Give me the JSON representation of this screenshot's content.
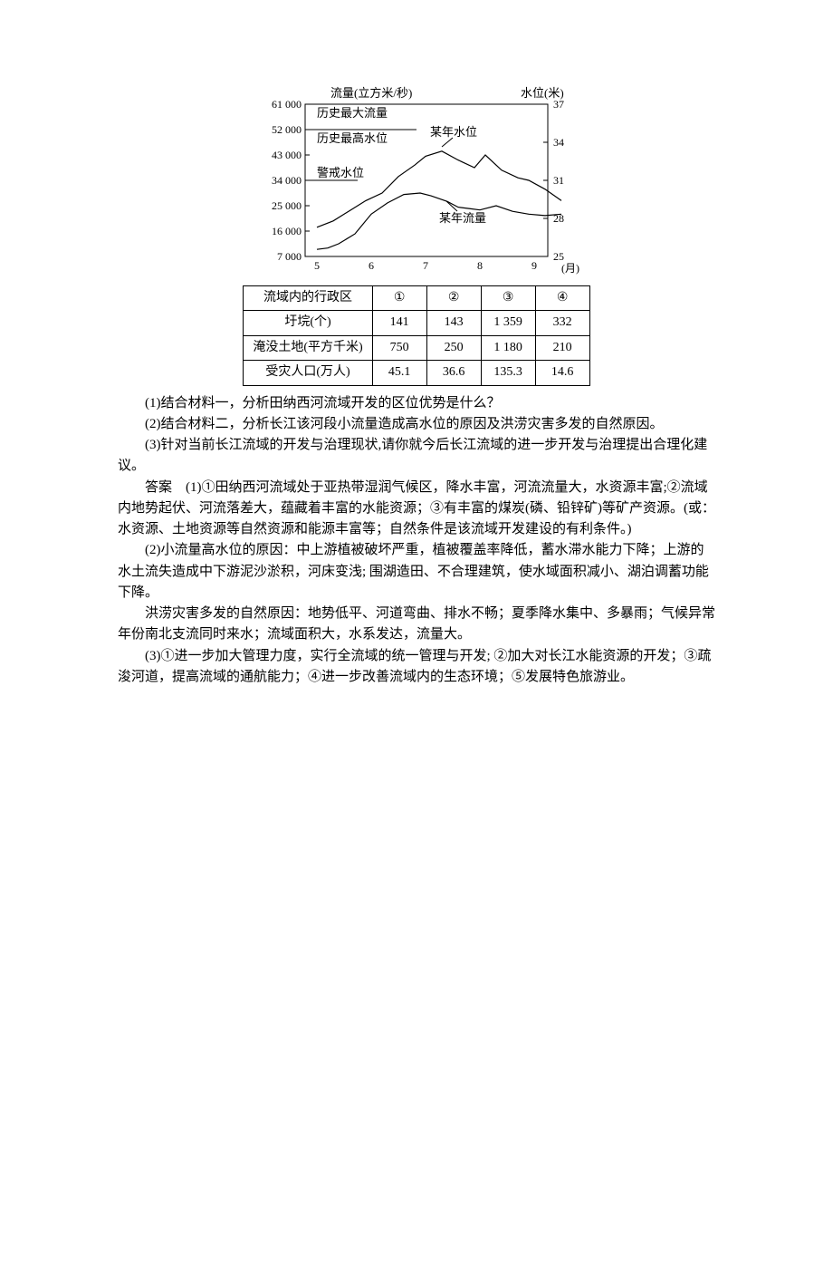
{
  "chart": {
    "type": "line",
    "left_axis_label": "流量(立方米/秒)",
    "right_axis_label": "水位(米)",
    "x_axis_label": "(月)",
    "left_yticks": [
      "61 000",
      "52 000",
      "43 000",
      "34 000",
      "25 000",
      "16 000",
      "7 000"
    ],
    "right_yticks": [
      "37",
      "34",
      "31",
      "28",
      "25"
    ],
    "xticks": [
      "5",
      "6",
      "7",
      "8",
      "9"
    ],
    "annotations": {
      "max_flow": "历史最大流量",
      "max_level": "历史最高水位",
      "warn_level": "警戒水位",
      "year_level": "某年水位",
      "year_flow": "某年流量"
    },
    "axis_color": "#000000",
    "line_color": "#000000",
    "background": "#ffffff",
    "series": {
      "max_flow_level": 61000,
      "max_level_level": 52000,
      "warn_level_level": 34000,
      "year_level_points": [
        [
          5.0,
          27.3
        ],
        [
          5.3,
          27.8
        ],
        [
          5.6,
          28.6
        ],
        [
          5.9,
          29.4
        ],
        [
          6.2,
          30.0
        ],
        [
          6.5,
          31.3
        ],
        [
          6.8,
          32.2
        ],
        [
          7.0,
          32.9
        ],
        [
          7.3,
          33.3
        ],
        [
          7.6,
          32.6
        ],
        [
          7.9,
          32.0
        ],
        [
          8.1,
          33.0
        ],
        [
          8.4,
          31.8
        ],
        [
          8.7,
          31.2
        ],
        [
          8.9,
          31.0
        ],
        [
          9.2,
          30.3
        ],
        [
          9.5,
          29.4
        ]
      ],
      "year_flow_points": [
        [
          5.0,
          9500
        ],
        [
          5.2,
          10000
        ],
        [
          5.4,
          11500
        ],
        [
          5.7,
          15000
        ],
        [
          6.0,
          22000
        ],
        [
          6.3,
          26000
        ],
        [
          6.6,
          29000
        ],
        [
          6.9,
          29500
        ],
        [
          7.1,
          28500
        ],
        [
          7.4,
          26500
        ],
        [
          7.6,
          24500
        ],
        [
          7.8,
          24000
        ],
        [
          8.0,
          23500
        ],
        [
          8.3,
          25000
        ],
        [
          8.6,
          23000
        ],
        [
          8.9,
          22000
        ],
        [
          9.2,
          21500
        ],
        [
          9.5,
          22000
        ]
      ]
    }
  },
  "table": {
    "rows": [
      {
        "label": "流域内的行政区",
        "cells": [
          "①",
          "②",
          "③",
          "④"
        ]
      },
      {
        "label": "圩垸(个)",
        "cells": [
          "141",
          "143",
          "1 359",
          "332"
        ]
      },
      {
        "label": "淹没土地(平方千米)",
        "cells": [
          "750",
          "250",
          "1 180",
          "210"
        ]
      },
      {
        "label": "受灾人口(万人)",
        "cells": [
          "45.1",
          "36.6",
          "135.3",
          "14.6"
        ]
      }
    ]
  },
  "questions": {
    "q1": "(1)结合材料一，分析田纳西河流域开发的区位优势是什么？",
    "q2": "(2)结合材料二，分析长江该河段小流量造成高水位的原因及洪涝灾害多发的自然原因。",
    "q3": "(3)针对当前长江流域的开发与治理现状,请你就今后长江流域的进一步开发与治理提出合理化建议。"
  },
  "answers": {
    "a1": "答案　(1)①田纳西河流域处于亚热带湿润气候区，降水丰富，河流流量大，水资源丰富;②流域内地势起伏、河流落差大，蕴藏着丰富的水能资源；③有丰富的煤炭(磷、铅锌矿)等矿产资源。(或：水资源、土地资源等自然资源和能源丰富等；自然条件是该流域开发建设的有利条件。)",
    "a2_p1": "(2)小流量高水位的原因：中上游植被破坏严重，植被覆盖率降低，蓄水滞水能力下降；上游的水土流失造成中下游泥沙淤积，河床变浅; 围湖造田、不合理建筑，使水域面积减小、湖泊调蓄功能下降。",
    "a2_p2": "洪涝灾害多发的自然原因：地势低平、河道弯曲、排水不畅；夏季降水集中、多暴雨；气候异常年份南北支流同时来水；流域面积大，水系发达，流量大。",
    "a3": "(3)①进一步加大管理力度，实行全流域的统一管理与开发; ②加大对长江水能资源的开发；③疏浚河道，提高流域的通航能力；④进一步改善流域内的生态环境；⑤发展特色旅游业。"
  }
}
